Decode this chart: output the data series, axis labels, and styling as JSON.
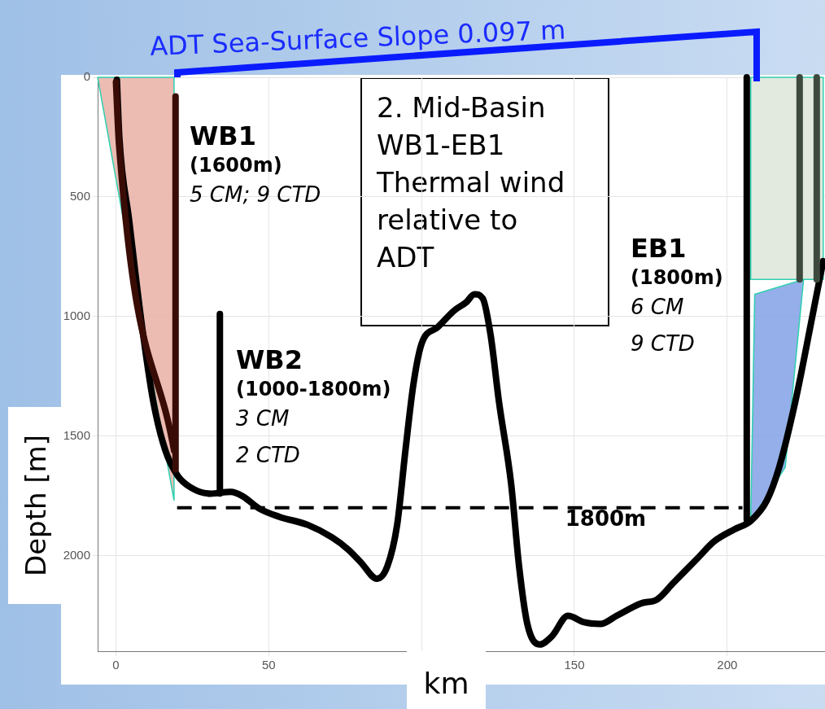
{
  "chart_data": {
    "type": "line",
    "title": "ADT Sea-Surface Slope 0.097 m",
    "xlabel": "km",
    "ylabel": "Depth [m]",
    "xlim": [
      -6,
      232
    ],
    "ylim": [
      2400,
      0
    ],
    "xticks": [
      0,
      50,
      {
        "value": 100,
        "label": null
      },
      150,
      200
    ],
    "yticks": [
      {
        "value": 0,
        "label": "0"
      },
      500,
      1000,
      1500,
      2000
    ],
    "grid": true,
    "legend": false,
    "marker": "none",
    "series": [
      {
        "type": "area",
        "color": "#e9b0a6",
        "x": [
          -6,
          19,
          19,
          -6
        ],
        "values": [
          0,
          0,
          1770,
          0
        ]
      },
      {
        "type": "area",
        "color": "#dde7da",
        "x": [
          207.7,
          231.4,
          231.4,
          207.7,
          207.7
        ],
        "values": [
          0,
          0,
          845,
          845,
          0
        ]
      },
      {
        "type": "area",
        "color": "#84a3e6",
        "x": [
          209,
          225,
          219,
          207.7,
          209
        ],
        "values": [
          907,
          845,
          1631,
          1855,
          907
        ]
      },
      {
        "color": "#3a0c06",
        "x": [
          0,
          1,
          19
        ],
        "values": [
          20,
          280,
          1560
        ]
      },
      {
        "color": "#3a0c06",
        "x": [
          19.5,
          19.5
        ],
        "values": [
          80,
          1640
        ]
      },
      {
        "color": "#000000",
        "x": [
          34,
          34
        ],
        "values": [
          990,
          1740
        ]
      },
      {
        "color": "#000000",
        "x": [
          206.4,
          206.4
        ],
        "values": [
          0,
          1850
        ]
      },
      {
        "color": "#3d4a3d",
        "x": [
          223.7,
          223.7
        ],
        "values": [
          0,
          845
        ]
      },
      {
        "color": "#3d4a3d",
        "x": [
          229.3,
          229.3
        ],
        "values": [
          0,
          845
        ]
      },
      {
        "color": "#000000",
        "x": [
          0.3,
          1.1,
          4.3,
          8.2,
          12.2,
          16.2,
          20.2,
          24.7,
          30.9,
          37.5,
          41.5,
          46.8,
          53.5,
          62.8,
          70.7,
          76.1,
          80.1,
          85.4,
          88.8,
          92,
          94.7,
          97.3,
          100,
          105.3,
          110.6,
          114.6,
          117.3,
          120,
          122.6,
          125.3,
          129.3,
          131.9,
          134.6,
          138.6,
          142.6,
          147.9,
          153.2,
          158.5,
          163.8,
          171.8,
          177.1,
          182.4,
          190.4,
          195.7,
          202.4,
          207.7,
          213,
          217,
          222.3,
          227.7,
          231.4
        ],
        "values": [
          10,
          252,
          597,
          1010,
          1355,
          1562,
          1666,
          1717,
          1741,
          1734,
          1752,
          1803,
          1838,
          1872,
          1924,
          1976,
          2028,
          2097,
          2045,
          1872,
          1562,
          1286,
          1114,
          1045,
          976,
          941,
          907,
          924,
          1079,
          1355,
          1700,
          2045,
          2286,
          2372,
          2338,
          2252,
          2279,
          2286,
          2252,
          2200,
          2183,
          2114,
          2010,
          1941,
          1890,
          1855,
          1769,
          1631,
          1355,
          1010,
          769
        ]
      }
    ],
    "ref_lines": [
      {
        "axis": "y",
        "value": 1800,
        "label": "1800m",
        "line_style": "dashed",
        "color": "#000000"
      }
    ],
    "annotations": [
      "WB1\n(1600m)\n5 CM; 9 CTD",
      "WB2\n(1000-1800m)\n3 CM\n2 CTD",
      "EB1\n(1800m)\n6 CM\n9 CTD",
      "2. Mid-Basin\nWB1-EB1\nThermal wind\nrelative to\nADT"
    ]
  }
}
